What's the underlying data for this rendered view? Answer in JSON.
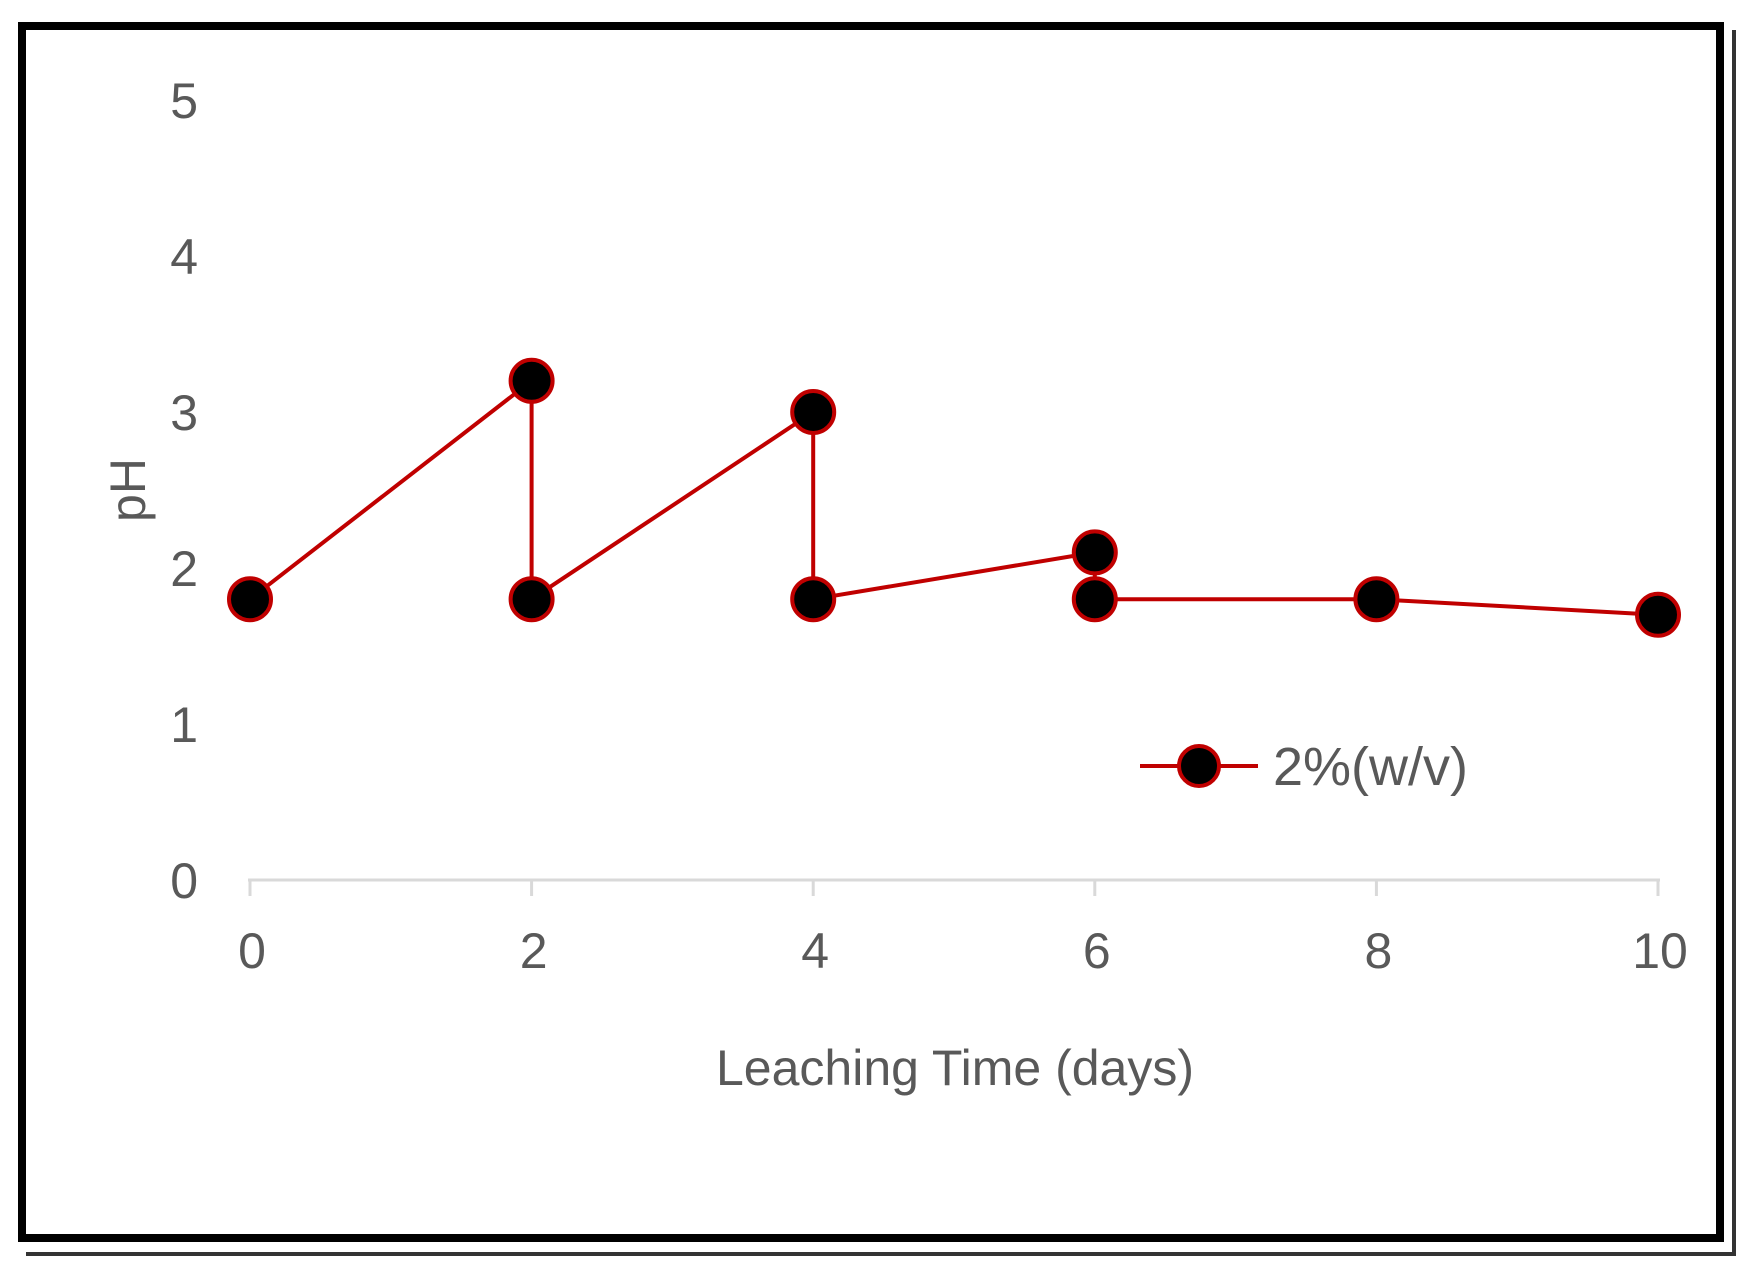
{
  "chart_data": {
    "type": "line",
    "title": "",
    "xlabel": "Leaching Time (days)",
    "ylabel": "pH",
    "xlim": [
      0,
      10
    ],
    "ylim": [
      0,
      5
    ],
    "x_ticks": [
      "0",
      "2",
      "4",
      "6",
      "8",
      "10"
    ],
    "y_ticks": [
      "0",
      "1",
      "2",
      "3",
      "4",
      "5"
    ],
    "grid": false,
    "legend_position": "right",
    "series": [
      {
        "name": "2%(w/v)",
        "color": "#c00000",
        "marker_fill": "#000000",
        "points": [
          {
            "x": 0,
            "y": 1.8
          },
          {
            "x": 2,
            "y": 3.2
          },
          {
            "x": 2,
            "y": 1.8
          },
          {
            "x": 4,
            "y": 3.0
          },
          {
            "x": 4,
            "y": 1.8
          },
          {
            "x": 6,
            "y": 2.1
          },
          {
            "x": 6,
            "y": 1.8
          },
          {
            "x": 8,
            "y": 1.8
          },
          {
            "x": 10,
            "y": 1.7
          }
        ]
      }
    ]
  }
}
